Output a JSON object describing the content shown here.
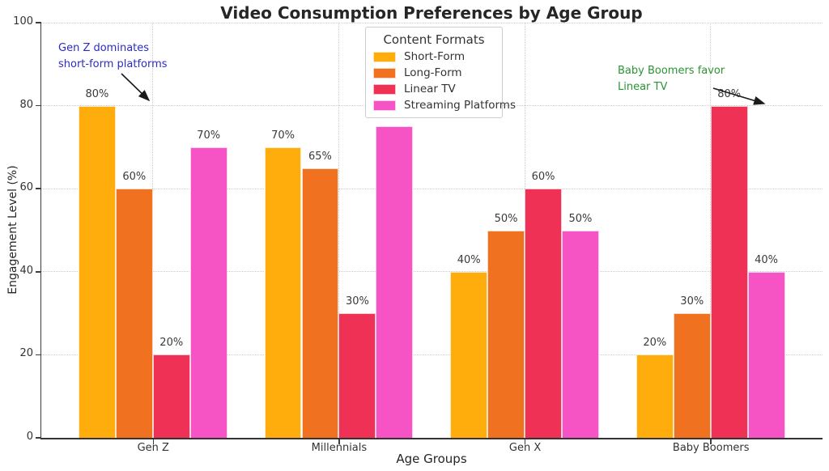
{
  "title": "Video Consumption Preferences by Age Group",
  "axes": {
    "xlabel": "Age Groups",
    "ylabel": "Engagement Level (%)",
    "yticks": [
      0,
      20,
      40,
      60,
      80,
      100
    ],
    "ylim": [
      0,
      100
    ]
  },
  "legend": {
    "title": "Content Formats",
    "position": "top-center"
  },
  "chart_data": {
    "type": "bar",
    "categories": [
      "Gen Z",
      "Millennials",
      "Gen X",
      "Baby Boomers"
    ],
    "series": [
      {
        "name": "Short-Form",
        "color": "#FFAD0D",
        "values": [
          80,
          70,
          40,
          20
        ]
      },
      {
        "name": "Long-Form",
        "color": "#F0711F",
        "values": [
          60,
          65,
          50,
          30
        ]
      },
      {
        "name": "Linear TV",
        "color": "#EF3156",
        "values": [
          20,
          30,
          60,
          80
        ]
      },
      {
        "name": "Streaming Platforms",
        "color": "#F653C4",
        "values": [
          70,
          75,
          50,
          40
        ]
      }
    ],
    "value_label_suffix": "%",
    "title": "Video Consumption Preferences by Age Group",
    "xlabel": "Age Groups",
    "ylabel": "Engagement Level (%)",
    "ylim": [
      0,
      100
    ],
    "grid": true,
    "legend_title": "Content Formats"
  },
  "annotations": [
    {
      "line1": "Gen Z dominates",
      "line2": "short-form platforms",
      "color": "#2B2BC8"
    },
    {
      "line1": "Baby Boomers favor",
      "line2": "Linear TV",
      "color": "#2B9432"
    }
  ],
  "colors": {
    "grid": "#cccccc",
    "spine": "#333333",
    "tick_label": "#333333",
    "value_label": "#3a3a3a",
    "title": "#262626",
    "arrow": "#1a1a1a"
  }
}
